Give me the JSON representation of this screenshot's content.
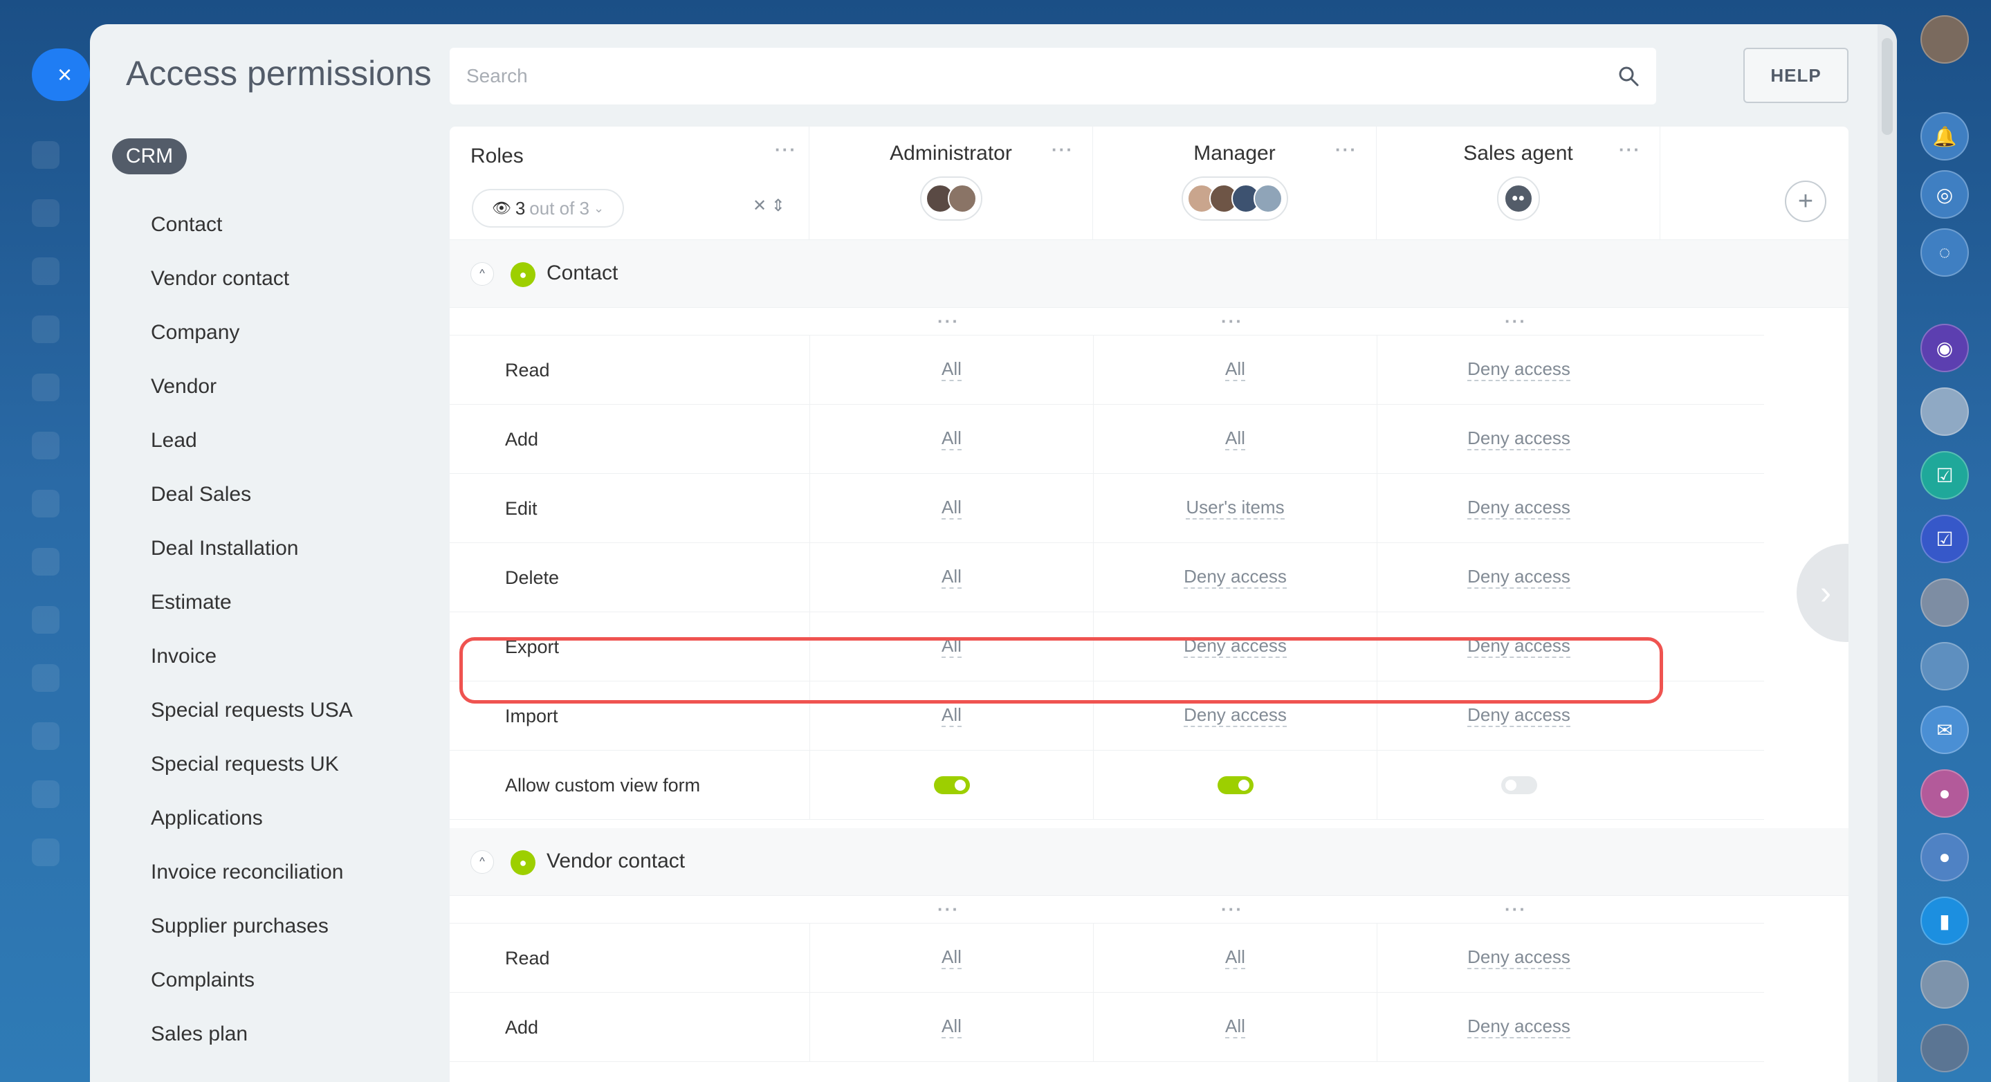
{
  "window": {
    "title": "Access permissions",
    "search_placeholder": "Search",
    "help_label": "HELP",
    "close_label": "×"
  },
  "sidebar": {
    "group": "CRM",
    "items": [
      "Contact",
      "Vendor contact",
      "Company",
      "Vendor",
      "Lead",
      "Deal Sales",
      "Deal Installation",
      "Estimate",
      "Invoice",
      "Special requests USA",
      "Special requests UK",
      "Applications",
      "Invoice reconciliation",
      "Supplier purchases",
      "Complaints",
      "Sales plan"
    ]
  },
  "table": {
    "roles_label": "Roles",
    "counter": {
      "current": "3",
      "rest": "out of 3"
    },
    "columns": [
      {
        "name": "Administrator"
      },
      {
        "name": "Manager"
      },
      {
        "name": "Sales agent"
      }
    ],
    "sections": [
      {
        "title": "Contact",
        "rows": [
          {
            "name": "Read",
            "values": [
              "All",
              "All",
              "Deny access"
            ]
          },
          {
            "name": "Add",
            "values": [
              "All",
              "All",
              "Deny access"
            ]
          },
          {
            "name": "Edit",
            "values": [
              "All",
              "User's items",
              "Deny access"
            ]
          },
          {
            "name": "Delete",
            "values": [
              "All",
              "Deny access",
              "Deny access"
            ]
          },
          {
            "name": "Export",
            "values": [
              "All",
              "Deny access",
              "Deny access"
            ]
          },
          {
            "name": "Import",
            "values": [
              "All",
              "Deny access",
              "Deny access"
            ]
          },
          {
            "name": "Allow custom view form",
            "toggles": [
              true,
              true,
              false
            ]
          }
        ]
      },
      {
        "title": "Vendor contact",
        "rows": [
          {
            "name": "Read",
            "values": [
              "All",
              "All",
              "Deny access"
            ]
          },
          {
            "name": "Add",
            "values": [
              "All",
              "All",
              "Deny access"
            ]
          }
        ]
      }
    ]
  },
  "colors": {
    "accent": "#1f7df4",
    "highlight": "#ef5350",
    "toggle_on": "#9dcf00",
    "section_icon": "#9dcf00"
  }
}
